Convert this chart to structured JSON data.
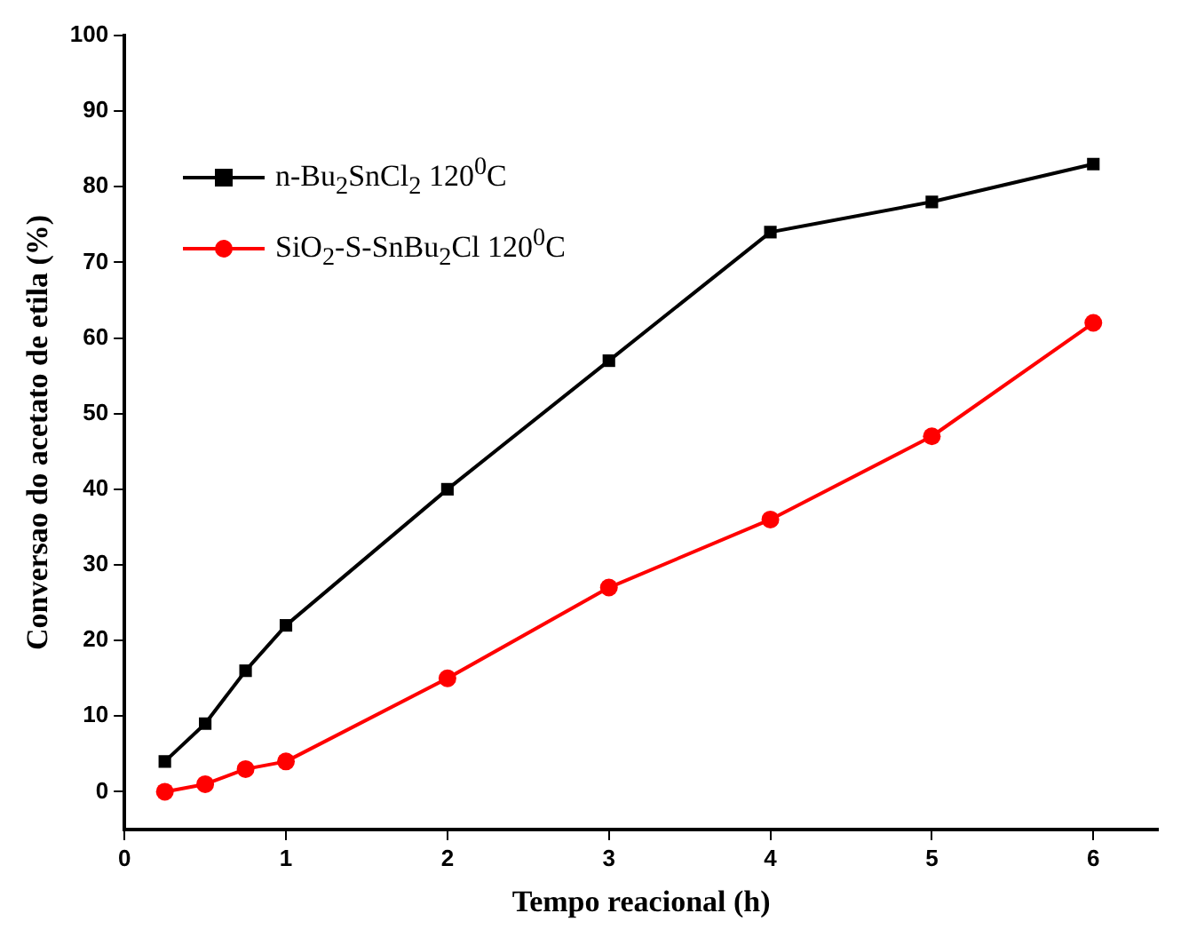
{
  "chart_data": {
    "type": "line",
    "xlabel": "Tempo reacional (h)",
    "ylabel": "Conversao do acetato de etila (%)",
    "xlim": [
      0,
      6.4
    ],
    "xticks": [
      0,
      1,
      2,
      3,
      4,
      5,
      6
    ],
    "ylim": [
      -5,
      100
    ],
    "yticks": [
      0,
      10,
      20,
      30,
      40,
      50,
      60,
      70,
      80,
      90,
      100
    ],
    "x": [
      0.25,
      0.5,
      0.75,
      1,
      2,
      3,
      4,
      5,
      6
    ],
    "series": [
      {
        "name": "n-Bu$_{2}$SnCl$_{2}$ 120$^{0}$C",
        "color": "#000000",
        "marker": "square",
        "values": [
          4,
          9,
          16,
          22,
          40,
          57,
          74,
          78,
          83
        ]
      },
      {
        "name": "SiO$_{2}$-S-SnBu$_{2}$Cl 120$^{0}$C",
        "color": "#ff0000",
        "marker": "circle",
        "values": [
          0,
          1,
          3,
          4,
          15,
          27,
          36,
          47,
          62
        ]
      }
    ],
    "grid": false,
    "legend": "top left",
    "line_style": "solid"
  }
}
